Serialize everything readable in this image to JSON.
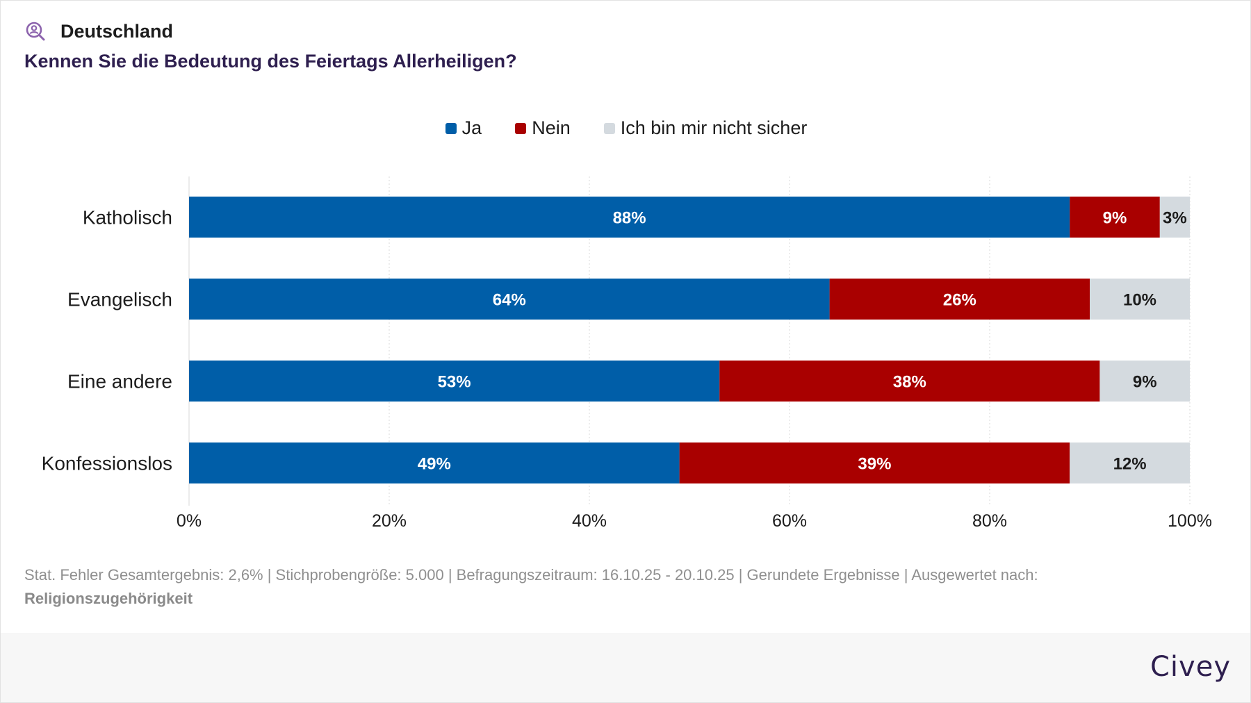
{
  "header": {
    "region": "Deutschland",
    "question": "Kennen Sie die Bedeutung des Feiertags Allerheiligen?"
  },
  "colors": {
    "ja": "#005ea8",
    "nein": "#a90000",
    "unsicher": "#d4dadf",
    "grid": "#d9d9d9",
    "title": "#2e1f4f",
    "icon": "#8c63ad"
  },
  "chart_data": {
    "type": "bar",
    "orientation": "horizontal",
    "stacked": true,
    "categories": [
      "Katholisch",
      "Evangelisch",
      "Eine andere",
      "Konfessionslos"
    ],
    "series": [
      {
        "name": "Ja",
        "values": [
          88,
          64,
          53,
          49
        ]
      },
      {
        "name": "Nein",
        "values": [
          9,
          26,
          38,
          39
        ]
      },
      {
        "name": "Ich bin mir nicht sicher",
        "values": [
          3,
          10,
          9,
          12
        ]
      }
    ],
    "data_labels": [
      [
        "88%",
        "64%",
        "53%",
        "49%"
      ],
      [
        "9%",
        "26%",
        "38%",
        "39%"
      ],
      [
        "3%",
        "10%",
        "9%",
        "12%"
      ]
    ],
    "xlim": [
      0,
      100
    ],
    "xticks": [
      0,
      20,
      40,
      60,
      80,
      100
    ],
    "xtick_labels": [
      "0%",
      "20%",
      "40%",
      "60%",
      "80%",
      "100%"
    ],
    "grid": true,
    "legend_position": "top-center",
    "title": "Kennen Sie die Bedeutung des Feiertags Allerheiligen?"
  },
  "footnote": {
    "text": "Stat. Fehler Gesamtergebnis: 2,6% | Stichprobengröße: 5.000 | Befragungszeitraum: 16.10.25 - 20.10.25 | Gerundete Ergebnisse | Ausgewertet nach:",
    "evaluated_by": "Religionszugehörigkeit"
  },
  "brand": "Civey"
}
